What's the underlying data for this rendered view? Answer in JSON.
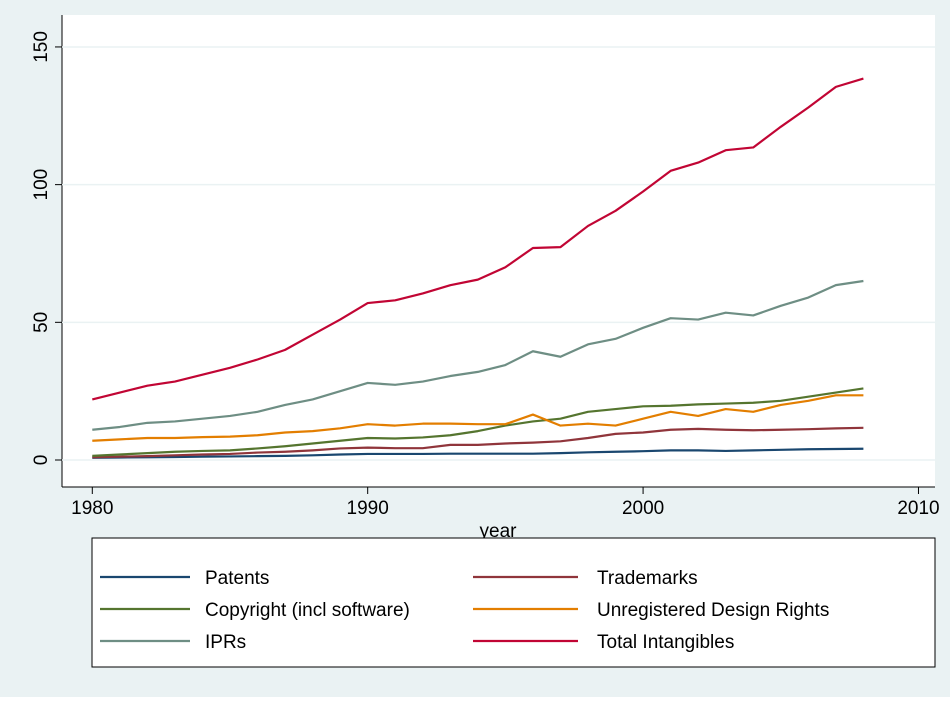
{
  "chart_data": {
    "type": "line",
    "x": [
      1980,
      1981,
      1982,
      1983,
      1984,
      1985,
      1986,
      1987,
      1988,
      1989,
      1990,
      1991,
      1992,
      1993,
      1994,
      1995,
      1996,
      1997,
      1998,
      1999,
      2000,
      2001,
      2002,
      2003,
      2004,
      2005,
      2006,
      2007,
      2008
    ],
    "x_label": "year",
    "xlim": [
      1978.9,
      2010.6
    ],
    "xticks": [
      1980,
      1990,
      2000,
      2010
    ],
    "ylim": [
      -9.8,
      161.6
    ],
    "yticks": [
      0,
      50,
      100,
      150
    ],
    "grid": true,
    "series": [
      {
        "name": "Patents",
        "color": "#1a476f",
        "values": [
          0.8,
          0.9,
          1,
          1.1,
          1.2,
          1.3,
          1.4,
          1.5,
          1.7,
          2,
          2.2,
          2.2,
          2.2,
          2.3,
          2.3,
          2.3,
          2.3,
          2.5,
          2.8,
          3,
          3.2,
          3.5,
          3.5,
          3.3,
          3.5,
          3.7,
          3.9,
          4,
          4.1
        ]
      },
      {
        "name": "Trademarks",
        "color": "#90353b",
        "values": [
          1,
          1.2,
          1.4,
          1.7,
          2,
          2.2,
          2.7,
          3,
          3.5,
          4.2,
          4.5,
          4.3,
          4.3,
          5.5,
          5.5,
          6,
          6.3,
          6.8,
          8,
          9.5,
          10,
          11,
          11.3,
          11,
          10.8,
          11,
          11.2,
          11.5,
          11.7
        ]
      },
      {
        "name": "Copyright (incl software)",
        "color": "#55752f",
        "values": [
          1.5,
          2,
          2.5,
          3,
          3.3,
          3.5,
          4.2,
          5,
          6,
          7,
          8,
          7.8,
          8.2,
          9,
          10.5,
          12.5,
          14,
          15,
          17.5,
          18.5,
          19.5,
          19.7,
          20.2,
          20.5,
          20.8,
          21.5,
          23,
          24.5,
          26
        ]
      },
      {
        "name": "Unregistered Design Rights",
        "color": "#e37e00",
        "values": [
          7,
          7.5,
          8,
          8,
          8.3,
          8.5,
          9,
          10,
          10.5,
          11.5,
          13,
          12.5,
          13.2,
          13.2,
          13,
          13,
          16.5,
          12.5,
          13.2,
          12.5,
          15,
          17.5,
          16,
          18.5,
          17.5,
          20,
          21.5,
          23.5,
          23.5
        ]
      },
      {
        "name": "IPRs",
        "color": "#6e8e84",
        "values": [
          11,
          12,
          13.5,
          14,
          15,
          16,
          17.5,
          20,
          22,
          25,
          28,
          27.3,
          28.5,
          30.5,
          32,
          34.5,
          39.5,
          37.5,
          42,
          44,
          48,
          51.5,
          51,
          53.5,
          52.5,
          56,
          59,
          63.5,
          65
        ]
      },
      {
        "name": "Total Intangibles",
        "color": "#c10534",
        "values": [
          22,
          24.5,
          27,
          28.5,
          31,
          33.5,
          36.5,
          40,
          45.5,
          51,
          57,
          58,
          60.5,
          63.5,
          65.5,
          70,
          77,
          77.3,
          85,
          90.5,
          97.5,
          105,
          108,
          112.5,
          113.5,
          121,
          128,
          135.5,
          138.5
        ]
      }
    ]
  }
}
